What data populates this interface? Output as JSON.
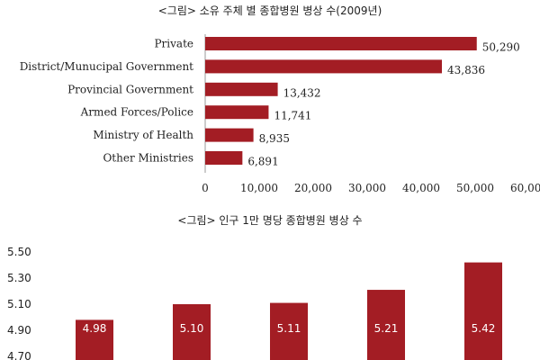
{
  "chart_data": [
    {
      "type": "bar",
      "orientation": "horizontal",
      "title": "<그림> 소유 주체 별 종합병원 병상 수(2009년)",
      "categories": [
        "Private",
        "District/Munucipal Government",
        "Provincial Government",
        "Armed Forces/Police",
        "Ministry of Health",
        "Other Ministries"
      ],
      "values": [
        50290,
        43836,
        13432,
        11741,
        8935,
        6891
      ],
      "value_labels": [
        "50,290",
        "43,836",
        "13,432",
        "11,741",
        "8,935",
        "6,891"
      ],
      "xlim": [
        0,
        60000
      ],
      "x_ticks": [
        "0",
        "10,000",
        "20,000",
        "30,000",
        "40,000",
        "50,000",
        "60,000"
      ],
      "grid": false,
      "color": "#a31d24"
    },
    {
      "type": "bar",
      "orientation": "vertical",
      "title": "<그림> 인구 1만 명당 종합병원 병상 수",
      "values": [
        4.98,
        5.1,
        5.11,
        5.21,
        5.42
      ],
      "value_labels": [
        "4.98",
        "5.10",
        "5.11",
        "5.21",
        "5.42"
      ],
      "ylim": [
        4.7,
        5.5
      ],
      "y_ticks": [
        "5.50",
        "5.30",
        "5.10",
        "4.90",
        "4.70"
      ],
      "grid": false,
      "color": "#a31d24"
    }
  ]
}
